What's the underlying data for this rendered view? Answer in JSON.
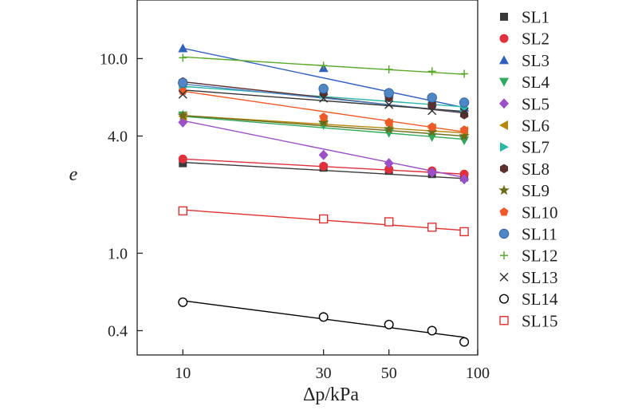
{
  "chart_data": {
    "type": "scatter",
    "xlabel": "Δp/kPa",
    "ylabel": "e",
    "x_scale": "log",
    "y_scale": "log",
    "xlim": [
      7,
      100
    ],
    "ylim": [
      0.3,
      20
    ],
    "xticks": [
      10,
      30,
      50,
      100
    ],
    "xtick_labels": [
      "10",
      "30",
      "50",
      "100"
    ],
    "yticks": [
      0.4,
      1.0,
      4.0,
      10.0
    ],
    "ytick_labels": [
      "0.4",
      "1.0",
      "4.0",
      "10.0"
    ],
    "grid": false,
    "legend_position": "right",
    "fit_lines": true,
    "series": [
      {
        "name": "SL1",
        "marker": "square",
        "color": "#3a3a3a",
        "x": [
          10,
          30,
          50,
          70,
          90
        ],
        "y": [
          2.9,
          2.75,
          2.65,
          2.55,
          2.45
        ],
        "fit": [
          2.93,
          2.42
        ]
      },
      {
        "name": "SL2",
        "marker": "circle",
        "color": "#e0303c",
        "x": [
          10,
          30,
          50,
          70,
          90
        ],
        "y": [
          3.05,
          2.8,
          2.7,
          2.65,
          2.55
        ],
        "fit": [
          3.05,
          2.55
        ]
      },
      {
        "name": "SL3",
        "marker": "triangle-up",
        "color": "#2f5fbf",
        "x": [
          10,
          30,
          50,
          70,
          90
        ],
        "y": [
          11.3,
          8.95,
          6.7,
          6.0,
          5.6
        ],
        "fit": [
          11.3,
          5.6
        ]
      },
      {
        "name": "SL4",
        "marker": "triangle-down",
        "color": "#2eaa5a",
        "x": [
          10,
          30,
          50,
          70,
          90
        ],
        "y": [
          5.1,
          4.55,
          4.15,
          3.95,
          3.8
        ],
        "fit": [
          5.05,
          3.85
        ]
      },
      {
        "name": "SL5",
        "marker": "diamond",
        "color": "#9b4fc9",
        "x": [
          10,
          30,
          50,
          70,
          90
        ],
        "y": [
          4.7,
          3.2,
          2.9,
          2.6,
          2.4
        ],
        "fit": [
          4.8,
          2.45
        ]
      },
      {
        "name": "SL6",
        "marker": "triangle-left",
        "color": "#b8860b",
        "x": [
          10,
          30,
          50,
          70,
          90
        ],
        "y": [
          5.05,
          4.75,
          4.65,
          4.4,
          4.25
        ],
        "fit": [
          5.1,
          4.15
        ]
      },
      {
        "name": "SL7",
        "marker": "triangle-right",
        "color": "#2ab8a8",
        "x": [
          10,
          30,
          50,
          70,
          90
        ],
        "y": [
          7.1,
          6.55,
          6.3,
          5.9,
          5.6
        ],
        "fit": [
          7.2,
          5.65
        ]
      },
      {
        "name": "SL8",
        "marker": "hexagon",
        "color": "#5c2e2e",
        "x": [
          10,
          30,
          50,
          70,
          90
        ],
        "y": [
          7.6,
          6.7,
          6.3,
          5.8,
          5.15
        ],
        "fit": [
          7.6,
          5.25
        ]
      },
      {
        "name": "SL9",
        "marker": "star",
        "color": "#6b6b1a",
        "x": [
          10,
          30,
          50,
          70,
          90
        ],
        "y": [
          5.1,
          4.7,
          4.35,
          4.2,
          4.0
        ],
        "fit": [
          5.1,
          4.0
        ]
      },
      {
        "name": "SL10",
        "marker": "pentagon",
        "color": "#f05a28",
        "x": [
          10,
          30,
          50,
          70,
          90
        ],
        "y": [
          6.8,
          5.0,
          4.7,
          4.45,
          4.3
        ],
        "fit": [
          6.8,
          4.2
        ]
      },
      {
        "name": "SL11",
        "marker": "sphere",
        "color": "#4f86c6",
        "x": [
          10,
          30,
          50,
          70,
          90
        ],
        "y": [
          7.5,
          7.0,
          6.65,
          6.3,
          5.95
        ],
        "fit": [
          7.4,
          5.3
        ]
      },
      {
        "name": "SL12",
        "marker": "plus",
        "color": "#5aaa2a",
        "x": [
          10,
          30,
          50,
          70,
          90
        ],
        "y": [
          10.1,
          9.2,
          8.8,
          8.6,
          8.35
        ],
        "fit": [
          10.2,
          8.3
        ]
      },
      {
        "name": "SL13",
        "marker": "x",
        "color": "#333333",
        "x": [
          10,
          30,
          50,
          70,
          90
        ],
        "y": [
          6.55,
          6.25,
          5.8,
          5.4,
          5.3
        ],
        "fit": [
          6.9,
          5.35
        ]
      },
      {
        "name": "SL14",
        "marker": "circle-open",
        "color": "#000000",
        "x": [
          10,
          30,
          50,
          70,
          90
        ],
        "y": [
          0.56,
          0.47,
          0.43,
          0.4,
          0.35
        ],
        "fit": [
          0.57,
          0.37
        ]
      },
      {
        "name": "SL15",
        "marker": "square-open",
        "color": "#e03030",
        "x": [
          10,
          30,
          50,
          70,
          90
        ],
        "y": [
          1.65,
          1.5,
          1.45,
          1.36,
          1.29
        ],
        "fit": [
          1.67,
          1.31
        ]
      }
    ]
  }
}
